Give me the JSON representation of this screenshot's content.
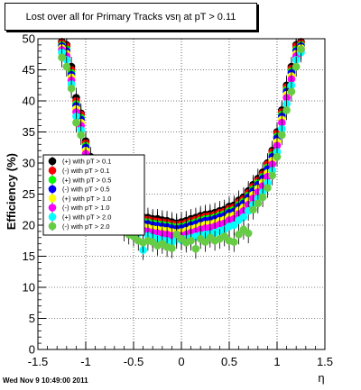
{
  "chart_data": {
    "type": "scatter",
    "title": "Lost over all for Primary Tracks vsη at pT > 0.11",
    "xlabel": "η",
    "ylabel": "Efficiency (%)",
    "xlim": [
      -1.5,
      1.5
    ],
    "ylim": [
      0,
      50
    ],
    "x_ticks": [
      "-1.5",
      "-1",
      "-0.5",
      "0",
      "0.5",
      "1",
      "1.5"
    ],
    "y_ticks": [
      "0",
      "5",
      "10",
      "15",
      "20",
      "25",
      "30",
      "35",
      "40",
      "45",
      "50"
    ],
    "grid": true,
    "legend_position": "center-left",
    "x": [
      -1.25,
      -1.2,
      -1.15,
      -1.1,
      -1.05,
      -1.0,
      -0.95,
      -0.9,
      -0.85,
      -0.8,
      -0.75,
      -0.7,
      -0.65,
      -0.6,
      -0.55,
      -0.5,
      -0.45,
      -0.4,
      -0.35,
      -0.3,
      -0.25,
      -0.2,
      -0.15,
      -0.1,
      -0.05,
      0.0,
      0.05,
      0.1,
      0.15,
      0.2,
      0.25,
      0.3,
      0.35,
      0.4,
      0.45,
      0.5,
      0.55,
      0.6,
      0.65,
      0.7,
      0.75,
      0.8,
      0.85,
      0.9,
      0.95,
      1.0,
      1.05,
      1.1,
      1.15,
      1.2,
      1.25
    ],
    "series": [
      {
        "name": "(+) with pT > 0.1",
        "color": "#000000",
        "values": [
          49.5,
          49,
          45.5,
          40.5,
          38,
          33.5,
          31,
          29.5,
          28,
          26.5,
          25.5,
          24.5,
          23.5,
          22.5,
          22,
          21.7,
          21.5,
          21.3,
          21.2,
          21,
          21,
          20.8,
          20.7,
          20.5,
          20.3,
          20.5,
          20.7,
          21,
          21.2,
          21.5,
          21.7,
          21.8,
          22,
          22.3,
          22.5,
          23,
          23.2,
          24,
          24.5,
          25.5,
          26.5,
          27.5,
          28.5,
          30,
          32,
          35,
          38.5,
          42.5,
          45.5,
          49,
          49.5
        ]
      },
      {
        "name": "(-) with pT > 0.1",
        "color": "#ff0000",
        "values": [
          49.3,
          48.8,
          45,
          40,
          37.8,
          33.2,
          30.7,
          29.2,
          27.8,
          26.2,
          25.2,
          24.2,
          23.2,
          22.2,
          21.8,
          21.4,
          21.2,
          21,
          20.9,
          20.7,
          20.6,
          20.5,
          20.4,
          20.2,
          20.1,
          20.2,
          20.4,
          20.7,
          20.9,
          21.2,
          21.4,
          21.5,
          21.7,
          22,
          22.2,
          22.7,
          22.9,
          23.7,
          24.2,
          25.2,
          26.2,
          27.2,
          28.2,
          29.8,
          31.8,
          34.8,
          38.2,
          42.2,
          45.2,
          48.8,
          49.3
        ]
      },
      {
        "name": "(+) with pT > 0.5",
        "color": "#00ff00",
        "values": [
          49,
          48.3,
          44.5,
          39.5,
          37.3,
          32.8,
          30.3,
          28.8,
          27.3,
          25.8,
          24.8,
          23.8,
          22.8,
          21.8,
          21.3,
          21,
          20.8,
          20.6,
          20.5,
          20.3,
          20.2,
          20.1,
          20,
          19.8,
          19.7,
          19.8,
          20,
          20.3,
          20.5,
          20.8,
          21,
          21.1,
          21.3,
          21.6,
          21.8,
          22.3,
          22.5,
          23.3,
          23.8,
          24.8,
          25.8,
          26.8,
          27.8,
          29.3,
          31.3,
          34.3,
          37.8,
          41.8,
          44.8,
          48.3,
          49
        ]
      },
      {
        "name": "(-) with pT > 0.5",
        "color": "#0000ff",
        "values": [
          48.8,
          48,
          44.2,
          39.2,
          37,
          32.5,
          30,
          28.5,
          27,
          25.5,
          24.5,
          23.5,
          22.5,
          21.5,
          21,
          20.7,
          20.5,
          20.3,
          20.2,
          20,
          19.9,
          19.8,
          19.7,
          19.5,
          19.4,
          19.5,
          19.7,
          20,
          20.2,
          20.5,
          20.7,
          20.8,
          21,
          21.3,
          21.5,
          22,
          22.2,
          23,
          23.5,
          24.5,
          25.5,
          26.5,
          27.5,
          29,
          31,
          34,
          37.5,
          41.5,
          44.5,
          48,
          48.8
        ]
      },
      {
        "name": "(+) with pT > 1.0",
        "color": "#ffff00",
        "values": [
          48.5,
          47.6,
          43.8,
          38.7,
          36.5,
          32,
          29.5,
          28,
          26.5,
          25,
          24,
          23,
          22,
          21,
          20.5,
          20.2,
          20,
          19.8,
          19.6,
          19.4,
          19.3,
          19.2,
          19.1,
          18.9,
          18.8,
          18.9,
          19.1,
          19.4,
          19.6,
          19.9,
          20.1,
          20.2,
          20.4,
          20.7,
          20.9,
          21.4,
          21.6,
          22.4,
          22.9,
          23.9,
          24.9,
          25.9,
          26.9,
          28.4,
          30.4,
          33.4,
          37,
          41,
          44,
          47.6,
          48.5
        ]
      },
      {
        "name": "(-) with pT > 1.0",
        "color": "#ff00ff",
        "values": [
          48.2,
          47.2,
          43.3,
          38.2,
          36,
          31.5,
          29,
          27.5,
          26,
          24.5,
          23.5,
          22.5,
          21.5,
          20.5,
          20,
          19.7,
          19.5,
          19.2,
          19,
          18.8,
          18.7,
          18.6,
          18.5,
          18.3,
          18.2,
          18.3,
          18.5,
          18.8,
          19,
          19.3,
          19.5,
          19.6,
          19.8,
          20.1,
          20.3,
          20.8,
          21,
          21.8,
          22.3,
          23.3,
          24.3,
          25.3,
          26.3,
          27.8,
          29.8,
          32.8,
          36.5,
          40.5,
          43.5,
          47.2,
          48.2
        ]
      },
      {
        "name": "(+) with pT > 2.0",
        "color": "#00ffff",
        "values": [
          47.8,
          46.6,
          42.7,
          37.5,
          35.3,
          30.8,
          28.3,
          26.8,
          25.3,
          23.8,
          22.8,
          21.8,
          20.8,
          19.8,
          19.3,
          19,
          18.7,
          16,
          18.3,
          18,
          17.8,
          17.6,
          17.5,
          17.2,
          17.8,
          17.6,
          17.8,
          18,
          18.2,
          18.4,
          18.5,
          18.6,
          18.8,
          19.1,
          19.3,
          19.8,
          20,
          20.8,
          21.3,
          22.3,
          23.3,
          24.3,
          25.3,
          26.8,
          28.8,
          31.8,
          35.5,
          39.5,
          42.5,
          46.6,
          47.8
        ]
      },
      {
        "name": "(-) with pT > 2.0",
        "color": "#66cc44",
        "values": [
          47,
          45.5,
          42,
          36.5,
          34.5,
          30,
          27.5,
          26,
          24.5,
          23,
          22,
          21,
          20,
          19,
          18.5,
          18.2,
          17.5,
          17.2,
          17.5,
          17.3,
          16.7,
          17,
          16.5,
          16.3,
          18.5,
          17.8,
          17.2,
          17.5,
          16.2,
          17.8,
          17.3,
          18,
          17.5,
          17.8,
          18.2,
          17.5,
          17.3,
          18.5,
          19.3,
          18.7,
          22.5,
          23.5,
          24.5,
          26,
          28,
          31,
          34.5,
          38.5,
          41.5,
          45.5,
          48.3
        ]
      }
    ]
  },
  "footer": {
    "timestamp": "Wed Nov  9 10:49:00 2011"
  }
}
